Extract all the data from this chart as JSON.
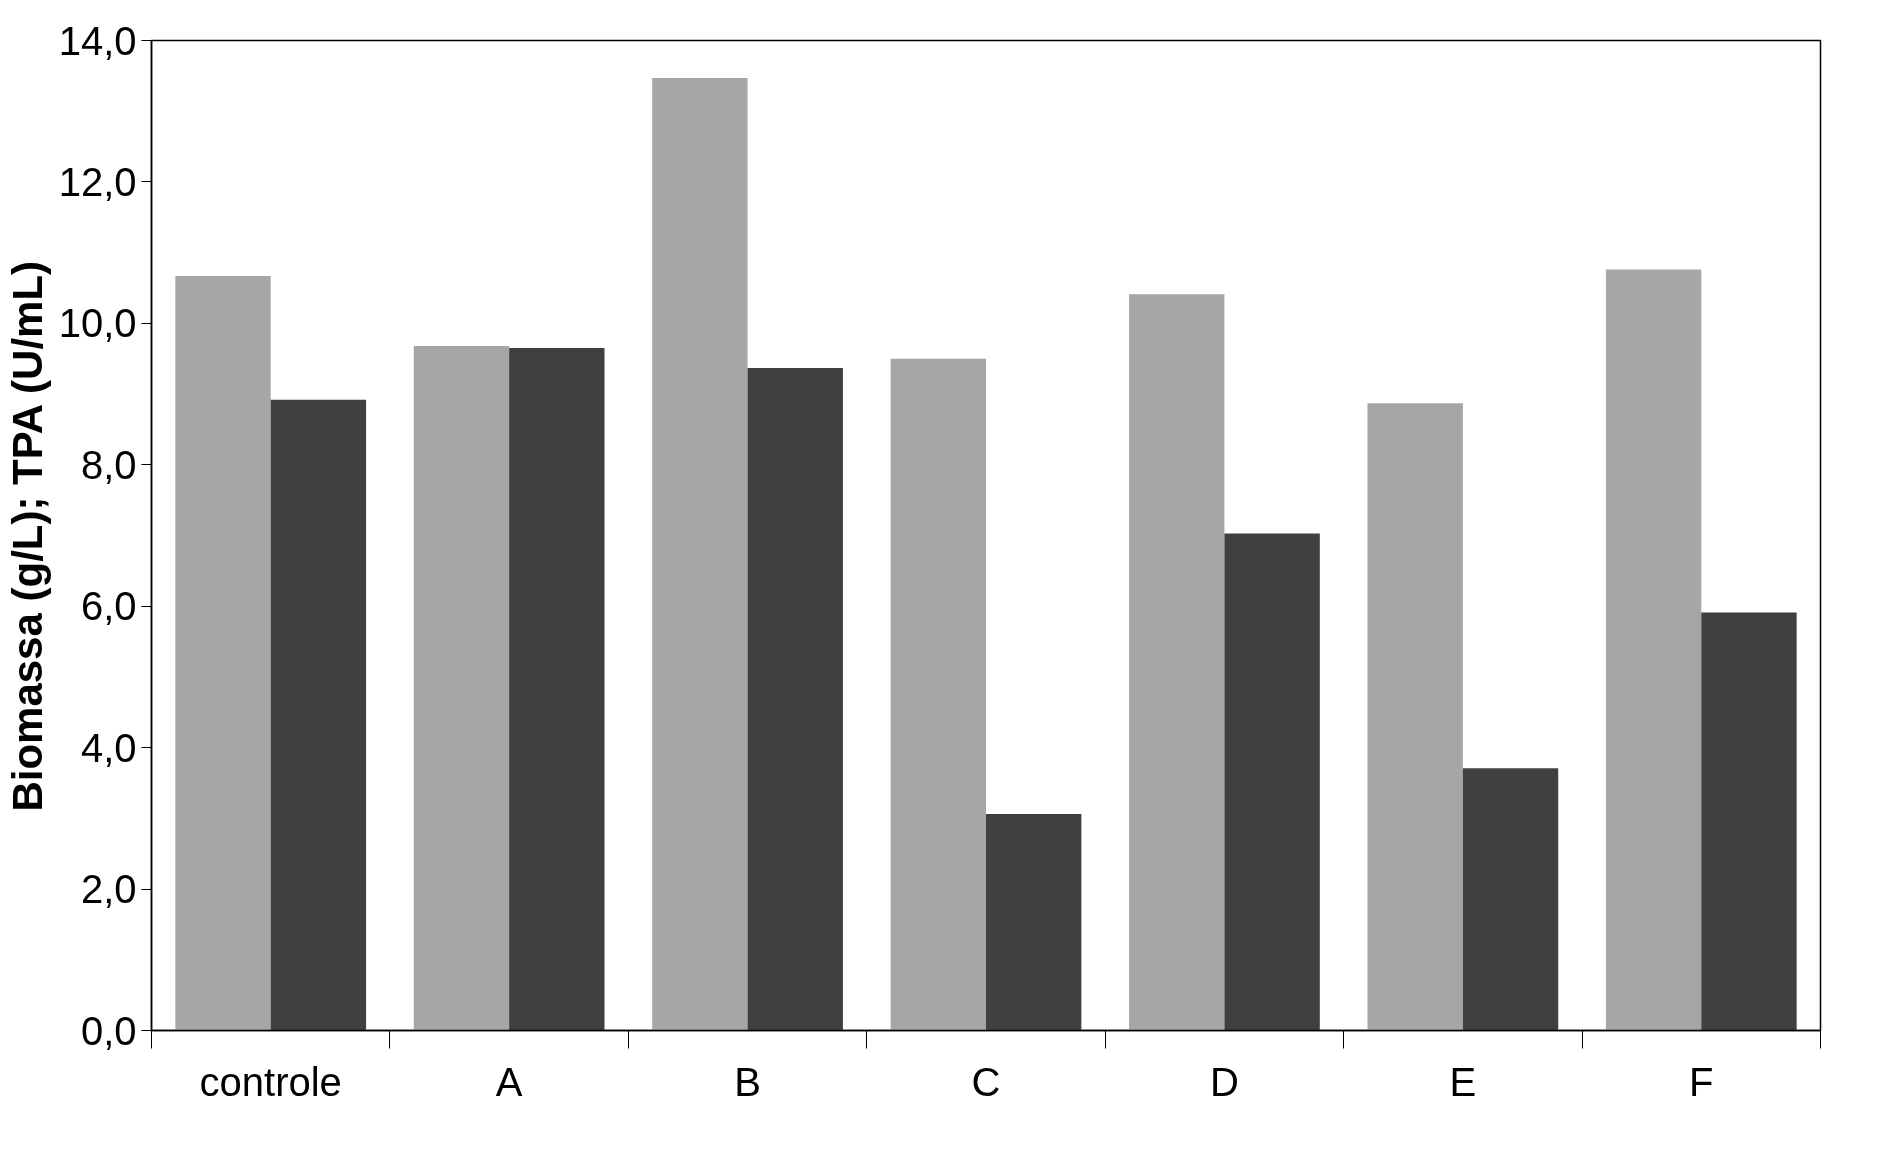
{
  "chart_data": {
    "type": "bar",
    "ylabel": "Biomassa (g/L); TPA (U/mL)",
    "categories": [
      "controle",
      "A",
      "B",
      "C",
      "D",
      "E",
      "F"
    ],
    "series": [
      {
        "color": "#a6a6a6",
        "values": [
          10.67,
          9.68,
          13.47,
          9.5,
          10.41,
          8.87,
          10.76
        ]
      },
      {
        "color": "#404040",
        "values": [
          8.92,
          9.65,
          9.37,
          3.06,
          7.03,
          3.71,
          5.91
        ]
      }
    ],
    "ylim": [
      0,
      14
    ],
    "yticks": [
      {
        "value": 0,
        "label": "0,0"
      },
      {
        "value": 2,
        "label": "2,0"
      },
      {
        "value": 4,
        "label": "4,0"
      },
      {
        "value": 6,
        "label": "6,0"
      },
      {
        "value": 8,
        "label": "8,0"
      },
      {
        "value": 10,
        "label": "10,0"
      },
      {
        "value": 12,
        "label": "12,0"
      },
      {
        "value": 14,
        "label": "14,0"
      }
    ],
    "grid": false
  }
}
